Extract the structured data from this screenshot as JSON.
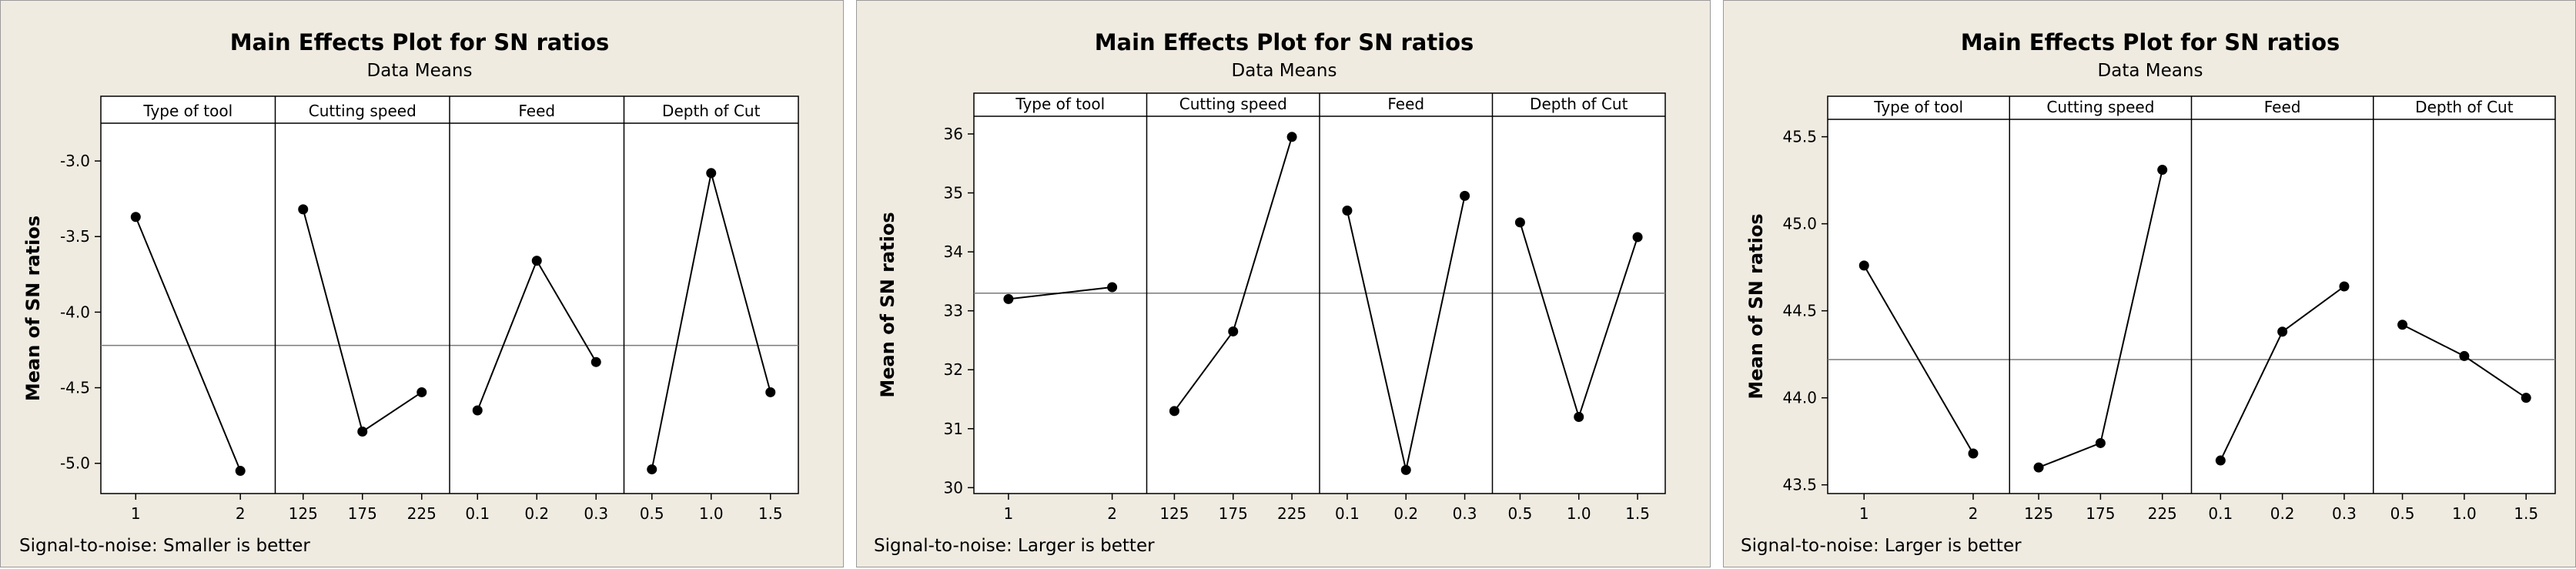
{
  "chart_data": [
    {
      "type": "line",
      "title": "Main Effects Plot for SN ratios",
      "subtitle": "Data Means",
      "ylabel": "Mean of SN ratios",
      "ylim": [
        -5.2,
        -2.75
      ],
      "yticks": [
        -5.0,
        -4.5,
        -4.0,
        -3.5,
        -3.0
      ],
      "ytick_labels": [
        "-5.0",
        "-4.5",
        "-4.0",
        "-3.5",
        "-3.0"
      ],
      "mean": -4.22,
      "footer": "Signal-to-noise: Smaller is better",
      "factors": [
        {
          "name": "Type of tool",
          "levels": [
            "1",
            "2"
          ],
          "values": [
            -3.37,
            -5.05
          ]
        },
        {
          "name": "Cutting speed",
          "levels": [
            "125",
            "175",
            "225"
          ],
          "values": [
            -3.32,
            -4.79,
            -4.53
          ]
        },
        {
          "name": "Feed",
          "levels": [
            "0.1",
            "0.2",
            "0.3"
          ],
          "values": [
            -4.65,
            -3.66,
            -4.33
          ]
        },
        {
          "name": "Depth of Cut",
          "levels": [
            "0.5",
            "1.0",
            "1.5"
          ],
          "values": [
            -5.04,
            -3.08,
            -4.53
          ]
        }
      ]
    },
    {
      "type": "line",
      "title": "Main Effects Plot for SN ratios",
      "subtitle": "Data Means",
      "ylabel": "Mean of SN ratios",
      "ylim": [
        29.9,
        36.3
      ],
      "yticks": [
        30,
        31,
        32,
        33,
        34,
        35,
        36
      ],
      "ytick_labels": [
        "30",
        "31",
        "32",
        "33",
        "34",
        "35",
        "36"
      ],
      "mean": 33.3,
      "footer": "Signal-to-noise: Larger is better",
      "factors": [
        {
          "name": "Type of tool",
          "levels": [
            "1",
            "2"
          ],
          "values": [
            33.2,
            33.4
          ]
        },
        {
          "name": "Cutting speed",
          "levels": [
            "125",
            "175",
            "225"
          ],
          "values": [
            31.3,
            32.65,
            35.95
          ]
        },
        {
          "name": "Feed",
          "levels": [
            "0.1",
            "0.2",
            "0.3"
          ],
          "values": [
            34.7,
            30.3,
            34.95
          ]
        },
        {
          "name": "Depth of Cut",
          "levels": [
            "0.5",
            "1.0",
            "1.5"
          ],
          "values": [
            34.5,
            31.2,
            34.25
          ]
        }
      ]
    },
    {
      "type": "line",
      "title": "Main Effects Plot for SN ratios",
      "subtitle": "Data Means",
      "ylabel": "Mean of SN ratios",
      "ylim": [
        43.45,
        45.6
      ],
      "yticks": [
        43.5,
        44.0,
        44.5,
        45.0,
        45.5
      ],
      "ytick_labels": [
        "43.5",
        "44.0",
        "44.5",
        "45.0",
        "45.5"
      ],
      "mean": 44.22,
      "footer": "Signal-to-noise: Larger is better",
      "factors": [
        {
          "name": "Type of tool",
          "levels": [
            "1",
            "2"
          ],
          "values": [
            44.76,
            43.68
          ]
        },
        {
          "name": "Cutting speed",
          "levels": [
            "125",
            "175",
            "225"
          ],
          "values": [
            43.6,
            43.74,
            45.31
          ]
        },
        {
          "name": "Feed",
          "levels": [
            "0.1",
            "0.2",
            "0.3"
          ],
          "values": [
            43.64,
            44.38,
            44.64
          ]
        },
        {
          "name": "Depth of Cut",
          "levels": [
            "0.5",
            "1.0",
            "1.5"
          ],
          "values": [
            44.42,
            44.24,
            44.0
          ]
        }
      ]
    }
  ]
}
